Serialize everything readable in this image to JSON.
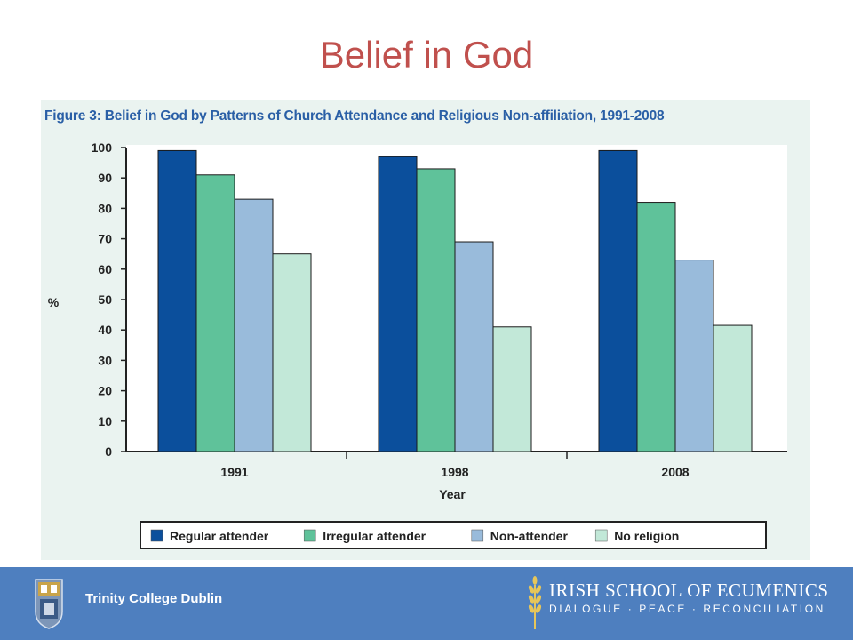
{
  "slide": {
    "title": "Belief in God"
  },
  "footer": {
    "institution": "Trinity College Dublin",
    "school_name": "IRISH SCHOOL OF ECUMENICS",
    "school_tagline": "DIALOGUE · PEACE · RECONCILIATION"
  },
  "colors": {
    "title": "#c0504d",
    "footer_bg": "#4e7fbf",
    "panel_bg": "#eaf3f0",
    "figure_title": "#2a5fa6"
  },
  "chart_data": {
    "type": "bar",
    "title": "Figure 3: Belief in God by Patterns of Church Attendance and Religious Non-affiliation, 1991-2008",
    "xlabel": "Year",
    "ylabel": "%",
    "ylim": [
      0,
      100
    ],
    "yticks": [
      0,
      10,
      20,
      30,
      40,
      50,
      60,
      70,
      80,
      90,
      100
    ],
    "categories": [
      "1991",
      "1998",
      "2008"
    ],
    "series": [
      {
        "name": "Regular attender",
        "color": "#0b4f9c",
        "values": [
          99,
          97,
          99
        ]
      },
      {
        "name": "Irregular attender",
        "color": "#5fc29a",
        "values": [
          91,
          93,
          82
        ]
      },
      {
        "name": "Non-attender",
        "color": "#99bbdb",
        "values": [
          83,
          69,
          63
        ]
      },
      {
        "name": "No religion",
        "color": "#c2e8d8",
        "values": [
          65,
          41,
          41.5
        ]
      }
    ],
    "grid": false,
    "legend_position": "bottom"
  }
}
